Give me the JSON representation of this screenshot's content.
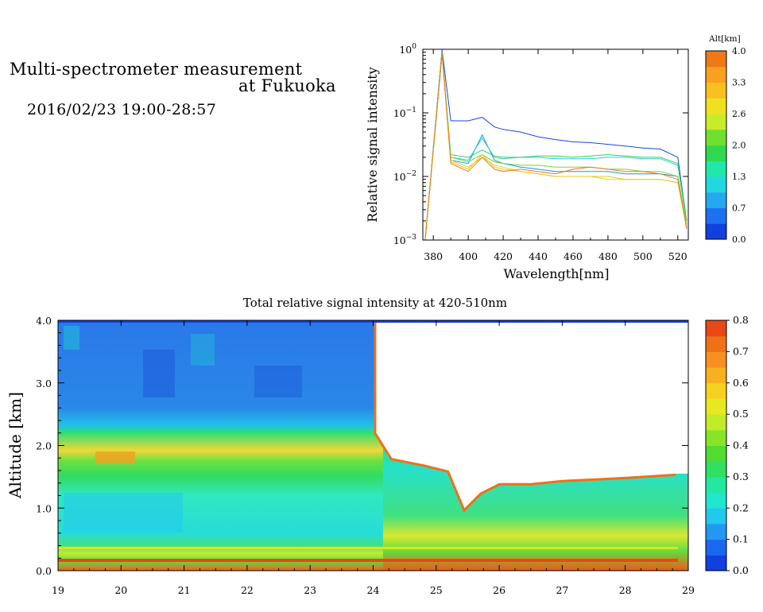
{
  "heading": {
    "line1": "Multi-spectrometer measurement",
    "line2": "at Fukuoka",
    "line3": "2016/02/23 19:00-28:57"
  },
  "colors": {
    "band_blue": "#1a4fd8",
    "band_cyan": "#22d7e0",
    "band_green": "#3fd03a",
    "band_yellow": "#f2e82a",
    "band_orange": "#f5a020",
    "band_red": "#e83010"
  },
  "chart_data": [
    {
      "type": "line",
      "title": "",
      "xlabel": "Wavelength[nm]",
      "ylabel": "Relative signal intensity",
      "y_scale": "log",
      "xlim": [
        374,
        526
      ],
      "ylim": [
        0.001,
        1
      ],
      "x_ticks": [
        "380",
        "400",
        "420",
        "440",
        "460",
        "480",
        "500",
        "520"
      ],
      "y_ticks": [
        {
          "base": "10",
          "exp": "0",
          "value": 1
        },
        {
          "base": "10",
          "exp": "−1",
          "value": 0.1
        },
        {
          "base": "10",
          "exp": "−2",
          "value": 0.01
        },
        {
          "base": "10",
          "exp": "−3",
          "value": 0.001
        }
      ],
      "colorbar": {
        "title": "Alt[km]",
        "labels": [
          "0.0",
          "0.7",
          "1.3",
          "2.0",
          "2.6",
          "3.3",
          "4.0"
        ],
        "colors": [
          "#1040e0",
          "#1e70f0",
          "#24a8f0",
          "#22d8e0",
          "#20e8a8",
          "#30d850",
          "#70e030",
          "#c8ec28",
          "#f0e020",
          "#f8c020",
          "#f8a020",
          "#f07818"
        ]
      },
      "x": [
        375,
        385,
        390,
        400,
        408,
        415,
        420,
        430,
        440,
        450,
        460,
        470,
        480,
        490,
        500,
        510,
        520,
        525
      ],
      "series": [
        {
          "color": "#1848d8",
          "values": [
            0.0008,
            0.98,
            0.075,
            0.075,
            0.085,
            0.06,
            0.055,
            0.05,
            0.042,
            0.038,
            0.035,
            0.034,
            0.032,
            0.03,
            0.028,
            0.027,
            0.02,
            0.002
          ]
        },
        {
          "color": "#1e90e8",
          "values": [
            0.0008,
            0.95,
            0.018,
            0.016,
            0.045,
            0.018,
            0.016,
            0.014,
            0.013,
            0.012,
            0.012,
            0.012,
            0.012,
            0.011,
            0.011,
            0.011,
            0.01,
            0.0015
          ]
        },
        {
          "color": "#20d0d8",
          "values": [
            0.0008,
            0.9,
            0.02,
            0.018,
            0.04,
            0.02,
            0.019,
            0.02,
            0.02,
            0.019,
            0.019,
            0.019,
            0.02,
            0.02,
            0.019,
            0.019,
            0.015,
            0.002
          ]
        },
        {
          "color": "#30d060",
          "values": [
            0.0008,
            0.88,
            0.022,
            0.02,
            0.026,
            0.021,
            0.02,
            0.02,
            0.021,
            0.021,
            0.02,
            0.021,
            0.022,
            0.021,
            0.02,
            0.02,
            0.016,
            0.002
          ]
        },
        {
          "color": "#70d830",
          "values": [
            0.0008,
            0.85,
            0.02,
            0.017,
            0.022,
            0.017,
            0.016,
            0.015,
            0.015,
            0.014,
            0.014,
            0.014,
            0.013,
            0.013,
            0.012,
            0.012,
            0.01,
            0.0018
          ]
        },
        {
          "color": "#c8e020",
          "values": [
            0.0008,
            0.85,
            0.018,
            0.014,
            0.02,
            0.015,
            0.014,
            0.012,
            0.011,
            0.01,
            0.01,
            0.01,
            0.009,
            0.009,
            0.009,
            0.009,
            0.008,
            0.0017
          ]
        },
        {
          "color": "#f0c020",
          "values": [
            0.0008,
            0.85,
            0.017,
            0.013,
            0.022,
            0.014,
            0.013,
            0.012,
            0.011,
            0.01,
            0.01,
            0.01,
            0.01,
            0.009,
            0.009,
            0.009,
            0.008,
            0.0016
          ]
        },
        {
          "color": "#f07818",
          "values": [
            0.0008,
            0.85,
            0.016,
            0.012,
            0.02,
            0.013,
            0.012,
            0.013,
            0.012,
            0.011,
            0.013,
            0.014,
            0.013,
            0.012,
            0.012,
            0.011,
            0.009,
            0.0016
          ]
        }
      ]
    },
    {
      "type": "heatmap",
      "title": "Total relative signal intensity at 420-510nm",
      "xlabel": "",
      "ylabel": "Altitude [km]",
      "xlim": [
        19,
        29
      ],
      "ylim": [
        0,
        4
      ],
      "x_ticks": [
        "19",
        "20",
        "21",
        "22",
        "23",
        "24",
        "25",
        "26",
        "27",
        "28",
        "29"
      ],
      "y_ticks": [
        "0.0",
        "1.0",
        "2.0",
        "3.0",
        "4.0"
      ],
      "colorbar": {
        "labels": [
          "0.0",
          "0.1",
          "0.2",
          "0.3",
          "0.4",
          "0.5",
          "0.6",
          "0.7",
          "0.8"
        ],
        "colors": [
          "#1040e0",
          "#1a68ee",
          "#2298f2",
          "#22c8ee",
          "#20e6d0",
          "#22e8a0",
          "#30e060",
          "#50dc30",
          "#88e428",
          "#c0ec28",
          "#e8e820",
          "#f8d020",
          "#f8b020",
          "#f89020",
          "#f07018",
          "#e84818"
        ]
      },
      "cloud_base_km": [
        {
          "t": 24.05,
          "alt": 2.2
        },
        {
          "t": 24.3,
          "alt": 1.8
        },
        {
          "t": 24.8,
          "alt": 1.7
        },
        {
          "t": 25.2,
          "alt": 1.6
        },
        {
          "t": 25.45,
          "alt": 1.0
        },
        {
          "t": 25.7,
          "alt": 1.25
        },
        {
          "t": 26.0,
          "alt": 1.4
        },
        {
          "t": 26.5,
          "alt": 1.4
        },
        {
          "t": 27.0,
          "alt": 1.45
        },
        {
          "t": 28.0,
          "alt": 1.5
        },
        {
          "t": 28.8,
          "alt": 1.55
        }
      ]
    }
  ]
}
